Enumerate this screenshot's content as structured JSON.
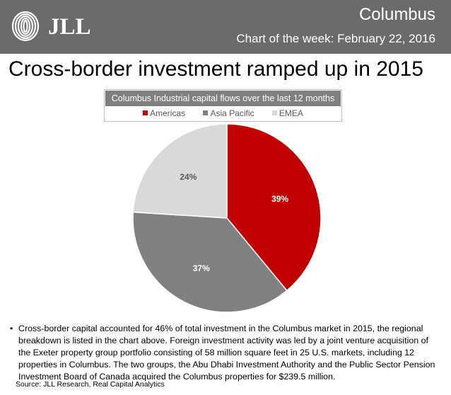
{
  "header": {
    "logo_text": "JLL",
    "city": "Columbus",
    "subtitle": "Chart of the week: February 22, 2016",
    "background_color": "#6b6b6b"
  },
  "headline": "Cross-border investment ramped up in 2015",
  "chart_data": {
    "type": "pie",
    "title": "Columbus Industrial capital flows over the last 12 months",
    "legend_position": "top",
    "categories": [
      "Americas",
      "Asia Pacific",
      "EMEA"
    ],
    "values": [
      39,
      37,
      24
    ],
    "labels": [
      "39%",
      "37%",
      "24%"
    ],
    "colors": [
      "#c00000",
      "#808080",
      "#d9d9d9"
    ],
    "label_colors": [
      "#ffffff",
      "#ffffff",
      "#595959"
    ]
  },
  "body": {
    "bullet_mark": "•",
    "bullet_text": "Cross-border capital accounted for 46% of total investment in the Columbus market in 2015, the regional breakdown is listed in the chart above. Foreign investment activity was led by a joint venture acquisition of the Exeter property group portfolio consisting of 58 million square feet in 25 U.S. markets, including 12 properties in Columbus. The two groups, the Abu Dhabi Investment Authority and the Public Sector Pension Investment Board of Canada acquired the Columbus properties for $239.5 million.",
    "source": "Source: JLL Research, Real Capital Analytics"
  }
}
